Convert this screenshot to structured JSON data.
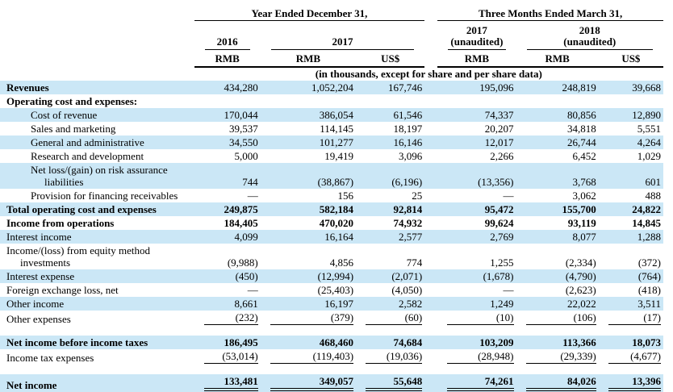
{
  "colors": {
    "row_shade": "#cbe7f6",
    "text": "#000000",
    "rule": "#000000"
  },
  "table": {
    "col_groups": [
      {
        "title": "Year Ended December 31,"
      },
      {
        "title": "Three Months Ended March 31,"
      }
    ],
    "year_headers": [
      {
        "label": "2016",
        "sub": ""
      },
      {
        "label": "2017",
        "sub": ""
      },
      {
        "label": "2017",
        "sub": "(unaudited)"
      },
      {
        "label": "2018",
        "sub": "(unaudited)"
      }
    ],
    "currency_headers": [
      "RMB",
      "RMB",
      "US$",
      "RMB",
      "RMB",
      "US$"
    ],
    "units_note": "(in thousands, except for share and per share data)",
    "rows": [
      {
        "label": "Revenues",
        "indent": 0,
        "label_bold": true,
        "num_bold": false,
        "shaded": true,
        "underline": "none",
        "values": [
          "434,280",
          "1,052,204",
          "167,746",
          "195,096",
          "248,819",
          "39,668"
        ]
      },
      {
        "label": "Operating cost and expenses:",
        "indent": 0,
        "label_bold": true,
        "num_bold": false,
        "shaded": false,
        "underline": "none",
        "values": [
          "",
          "",
          "",
          "",
          "",
          ""
        ]
      },
      {
        "label": "Cost of revenue",
        "indent": 1,
        "label_bold": false,
        "num_bold": false,
        "shaded": true,
        "underline": "none",
        "values": [
          "170,044",
          "386,054",
          "61,546",
          "74,337",
          "80,856",
          "12,890"
        ]
      },
      {
        "label": "Sales and marketing",
        "indent": 1,
        "label_bold": false,
        "num_bold": false,
        "shaded": false,
        "underline": "none",
        "values": [
          "39,537",
          "114,145",
          "18,197",
          "20,207",
          "34,818",
          "5,551"
        ]
      },
      {
        "label": "General and administrative",
        "indent": 1,
        "label_bold": false,
        "num_bold": false,
        "shaded": true,
        "underline": "none",
        "values": [
          "34,550",
          "101,277",
          "16,146",
          "12,017",
          "26,744",
          "4,264"
        ]
      },
      {
        "label": "Research and development",
        "indent": 1,
        "label_bold": false,
        "num_bold": false,
        "shaded": false,
        "underline": "none",
        "values": [
          "5,000",
          "19,419",
          "3,096",
          "2,266",
          "6,452",
          "1,029"
        ]
      },
      {
        "label": "Net loss/(gain) on risk assurance",
        "label2": "liabilities",
        "indent": 1,
        "label_bold": false,
        "num_bold": false,
        "shaded": true,
        "underline": "none",
        "values": [
          "744",
          "(38,867)",
          "(6,196)",
          "(13,356)",
          "3,768",
          "601"
        ]
      },
      {
        "label": "Provision for financing receivables",
        "indent": 1,
        "label_bold": false,
        "num_bold": false,
        "shaded": false,
        "underline": "none",
        "values": [
          "—",
          "156",
          "25",
          "—",
          "3,062",
          "488"
        ]
      },
      {
        "label": "Total operating cost and expenses",
        "indent": 0,
        "label_bold": true,
        "num_bold": true,
        "shaded": true,
        "underline": "none",
        "values": [
          "249,875",
          "582,184",
          "92,814",
          "95,472",
          "155,700",
          "24,822"
        ]
      },
      {
        "label": "Income from operations",
        "indent": 0,
        "label_bold": true,
        "num_bold": true,
        "shaded": false,
        "underline": "none",
        "values": [
          "184,405",
          "470,020",
          "74,932",
          "99,624",
          "93,119",
          "14,845"
        ]
      },
      {
        "label": "Interest income",
        "indent": 0,
        "label_bold": false,
        "num_bold": false,
        "shaded": true,
        "underline": "none",
        "values": [
          "4,099",
          "16,164",
          "2,577",
          "2,769",
          "8,077",
          "1,288"
        ]
      },
      {
        "label": "Income/(loss) from equity method",
        "label2": "investments",
        "indent": 0,
        "label_bold": false,
        "num_bold": false,
        "shaded": false,
        "underline": "none",
        "values": [
          "(9,988)",
          "4,856",
          "774",
          "1,255",
          "(2,334)",
          "(372)"
        ]
      },
      {
        "label": "Interest expense",
        "indent": 0,
        "label_bold": false,
        "num_bold": false,
        "shaded": true,
        "underline": "none",
        "values": [
          "(450)",
          "(12,994)",
          "(2,071)",
          "(1,678)",
          "(4,790)",
          "(764)"
        ]
      },
      {
        "label": "Foreign exchange loss, net",
        "indent": 0,
        "label_bold": false,
        "num_bold": false,
        "shaded": false,
        "underline": "none",
        "values": [
          "—",
          "(25,403)",
          "(4,050)",
          "—",
          "(2,623)",
          "(418)"
        ]
      },
      {
        "label": "Other income",
        "indent": 0,
        "label_bold": false,
        "num_bold": false,
        "shaded": true,
        "underline": "none",
        "values": [
          "8,661",
          "16,197",
          "2,582",
          "1,249",
          "22,022",
          "3,511"
        ]
      },
      {
        "label": "Other expenses",
        "indent": 0,
        "label_bold": false,
        "num_bold": false,
        "shaded": false,
        "underline": "single",
        "values": [
          "(232)",
          "(379)",
          "(60)",
          "(10)",
          "(106)",
          "(17)"
        ]
      },
      {
        "type": "gap"
      },
      {
        "label": "Net income before income taxes",
        "indent": 0,
        "label_bold": true,
        "num_bold": true,
        "shaded": true,
        "underline": "none",
        "values": [
          "186,495",
          "468,460",
          "74,684",
          "103,209",
          "113,366",
          "18,073"
        ]
      },
      {
        "label": "Income tax expenses",
        "indent": 0,
        "label_bold": false,
        "num_bold": false,
        "shaded": false,
        "underline": "single",
        "values": [
          "(53,014)",
          "(119,403)",
          "(19,036)",
          "(28,948)",
          "(29,339)",
          "(4,677)"
        ]
      },
      {
        "type": "gap"
      },
      {
        "label": "Net income",
        "indent": 0,
        "label_bold": true,
        "num_bold": true,
        "shaded": true,
        "underline": "double",
        "values": [
          "133,481",
          "349,057",
          "55,648",
          "74,261",
          "84,026",
          "13,396"
        ]
      }
    ]
  }
}
